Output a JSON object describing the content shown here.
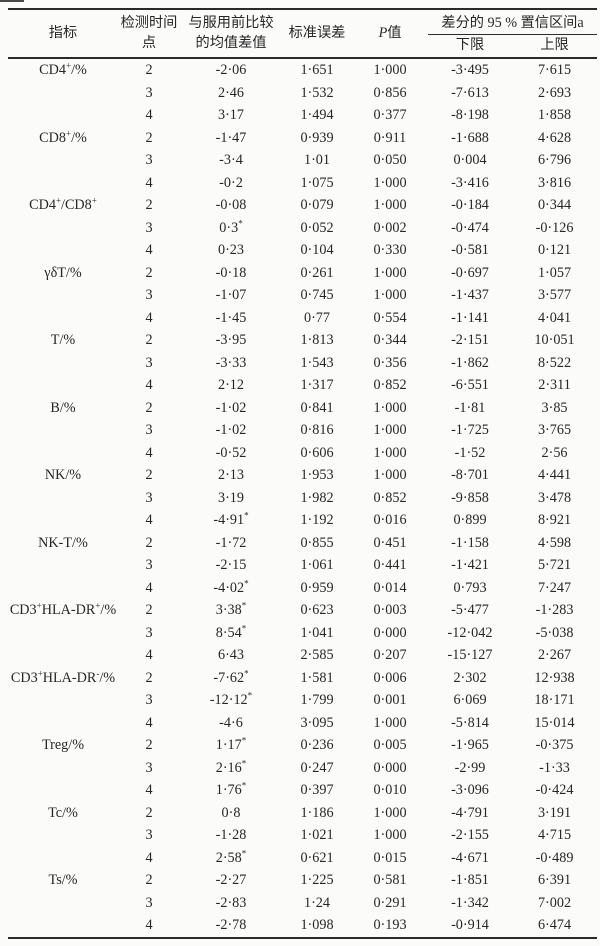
{
  "table": {
    "headers": {
      "indicator": "指标",
      "timepoint": "检测时间\n点",
      "mean_diff": "与服用前比较\n的均值差值",
      "std_error": "标准误差",
      "p_italic": "P",
      "p_suffix": "值",
      "ci_group": "差分的 95 % 置信区间a",
      "ci_lower": "下限",
      "ci_upper": "上限"
    },
    "groups": [
      {
        "indicator": "CD4^+/%",
        "rows": [
          {
            "t": "2",
            "diff": "-2·06",
            "se": "1·651",
            "p": "1·000",
            "lo": "-3·495",
            "hi": "7·615"
          },
          {
            "t": "3",
            "diff": "2·46",
            "se": "1·532",
            "p": "0·856",
            "lo": "-7·613",
            "hi": "2·693"
          },
          {
            "t": "4",
            "diff": "3·17",
            "se": "1·494",
            "p": "0·377",
            "lo": "-8·198",
            "hi": "1·858"
          }
        ]
      },
      {
        "indicator": "CD8^+/%",
        "rows": [
          {
            "t": "2",
            "diff": "-1·47",
            "se": "0·939",
            "p": "0·911",
            "lo": "-1·688",
            "hi": "4·628"
          },
          {
            "t": "3",
            "diff": "-3·4",
            "se": "1·01",
            "p": "0·050",
            "lo": "0·004",
            "hi": "6·796"
          },
          {
            "t": "4",
            "diff": "-0·2",
            "se": "1·075",
            "p": "1·000",
            "lo": "-3·416",
            "hi": "3·816"
          }
        ]
      },
      {
        "indicator": "CD4^+/CD8^+",
        "rows": [
          {
            "t": "2",
            "diff": "-0·08",
            "se": "0·079",
            "p": "1·000",
            "lo": "-0·184",
            "hi": "0·344"
          },
          {
            "t": "3",
            "diff": "0·3^*",
            "se": "0·052",
            "p": "0·002",
            "lo": "-0·474",
            "hi": "-0·126"
          },
          {
            "t": "4",
            "diff": "0·23",
            "se": "0·104",
            "p": "0·330",
            "lo": "-0·581",
            "hi": "0·121"
          }
        ]
      },
      {
        "indicator": "γδT/%",
        "rows": [
          {
            "t": "2",
            "diff": "-0·18",
            "se": "0·261",
            "p": "1·000",
            "lo": "-0·697",
            "hi": "1·057"
          },
          {
            "t": "3",
            "diff": "-1·07",
            "se": "0·745",
            "p": "1·000",
            "lo": "-1·437",
            "hi": "3·577"
          },
          {
            "t": "4",
            "diff": "-1·45",
            "se": "0·77",
            "p": "0·554",
            "lo": "-1·141",
            "hi": "4·041"
          }
        ]
      },
      {
        "indicator": "T/%",
        "rows": [
          {
            "t": "2",
            "diff": "-3·95",
            "se": "1·813",
            "p": "0·344",
            "lo": "-2·151",
            "hi": "10·051"
          },
          {
            "t": "3",
            "diff": "-3·33",
            "se": "1·543",
            "p": "0·356",
            "lo": "-1·862",
            "hi": "8·522"
          },
          {
            "t": "4",
            "diff": "2·12",
            "se": "1·317",
            "p": "0·852",
            "lo": "-6·551",
            "hi": "2·311"
          }
        ]
      },
      {
        "indicator": "B/%",
        "rows": [
          {
            "t": "2",
            "diff": "-1·02",
            "se": "0·841",
            "p": "1·000",
            "lo": "-1·81",
            "hi": "3·85"
          },
          {
            "t": "3",
            "diff": "-1·02",
            "se": "0·816",
            "p": "1·000",
            "lo": "-1·725",
            "hi": "3·765"
          },
          {
            "t": "4",
            "diff": "-0·52",
            "se": "0·606",
            "p": "1·000",
            "lo": "-1·52",
            "hi": "2·56"
          }
        ]
      },
      {
        "indicator": "NK/%",
        "rows": [
          {
            "t": "2",
            "diff": "2·13",
            "se": "1·953",
            "p": "1·000",
            "lo": "-8·701",
            "hi": "4·441"
          },
          {
            "t": "3",
            "diff": "3·19",
            "se": "1·982",
            "p": "0·852",
            "lo": "-9·858",
            "hi": "3·478"
          },
          {
            "t": "4",
            "diff": "-4·91^*",
            "se": "1·192",
            "p": "0·016",
            "lo": "0·899",
            "hi": "8·921"
          }
        ]
      },
      {
        "indicator": "NK-T/%",
        "rows": [
          {
            "t": "2",
            "diff": "-1·72",
            "se": "0·855",
            "p": "0·451",
            "lo": "-1·158",
            "hi": "4·598"
          },
          {
            "t": "3",
            "diff": "-2·15",
            "se": "1·061",
            "p": "0·441",
            "lo": "-1·421",
            "hi": "5·721"
          },
          {
            "t": "4",
            "diff": "-4·02^*",
            "se": "0·959",
            "p": "0·014",
            "lo": "0·793",
            "hi": "7·247"
          }
        ]
      },
      {
        "indicator": "CD3^+HLA-DR^+/%",
        "rows": [
          {
            "t": "2",
            "diff": "3·38^*",
            "se": "0·623",
            "p": "0·003",
            "lo": "-5·477",
            "hi": "-1·283"
          },
          {
            "t": "3",
            "diff": "8·54^*",
            "se": "1·041",
            "p": "0·000",
            "lo": "-12·042",
            "hi": "-5·038"
          },
          {
            "t": "4",
            "diff": "6·43",
            "se": "2·585",
            "p": "0·207",
            "lo": "-15·127",
            "hi": "2·267"
          }
        ]
      },
      {
        "indicator": "CD3^+HLA-DR^-/%",
        "rows": [
          {
            "t": "2",
            "diff": "-7·62^*",
            "se": "1·581",
            "p": "0·006",
            "lo": "2·302",
            "hi": "12·938"
          },
          {
            "t": "3",
            "diff": "-12·12^*",
            "se": "1·799",
            "p": "0·001",
            "lo": "6·069",
            "hi": "18·171"
          },
          {
            "t": "4",
            "diff": "-4·6",
            "se": "3·095",
            "p": "1·000",
            "lo": "-5·814",
            "hi": "15·014"
          }
        ]
      },
      {
        "indicator": "Treg/%",
        "rows": [
          {
            "t": "2",
            "diff": "1·17^*",
            "se": "0·236",
            "p": "0·005",
            "lo": "-1·965",
            "hi": "-0·375"
          },
          {
            "t": "3",
            "diff": "2·16^*",
            "se": "0·247",
            "p": "0·000",
            "lo": "-2·99",
            "hi": "-1·33"
          },
          {
            "t": "4",
            "diff": "1·76^*",
            "se": "0·397",
            "p": "0·010",
            "lo": "-3·096",
            "hi": "-0·424"
          }
        ]
      },
      {
        "indicator": "Tc/%",
        "rows": [
          {
            "t": "2",
            "diff": "0·8",
            "se": "1·186",
            "p": "1·000",
            "lo": "-4·791",
            "hi": "3·191"
          },
          {
            "t": "3",
            "diff": "-1·28",
            "se": "1·021",
            "p": "1·000",
            "lo": "-2·155",
            "hi": "4·715"
          },
          {
            "t": "4",
            "diff": "2·58^*",
            "se": "0·621",
            "p": "0·015",
            "lo": "-4·671",
            "hi": "-0·489"
          }
        ]
      },
      {
        "indicator": "Ts/%",
        "rows": [
          {
            "t": "2",
            "diff": "-2·27",
            "se": "1·225",
            "p": "0·581",
            "lo": "-1·851",
            "hi": "6·391"
          },
          {
            "t": "3",
            "diff": "-2·83",
            "se": "1·24",
            "p": "0·291",
            "lo": "-1·342",
            "hi": "7·002"
          },
          {
            "t": "4",
            "diff": "-2·78",
            "se": "1·098",
            "p": "0·193",
            "lo": "-0·914",
            "hi": "6·474"
          }
        ]
      }
    ]
  }
}
